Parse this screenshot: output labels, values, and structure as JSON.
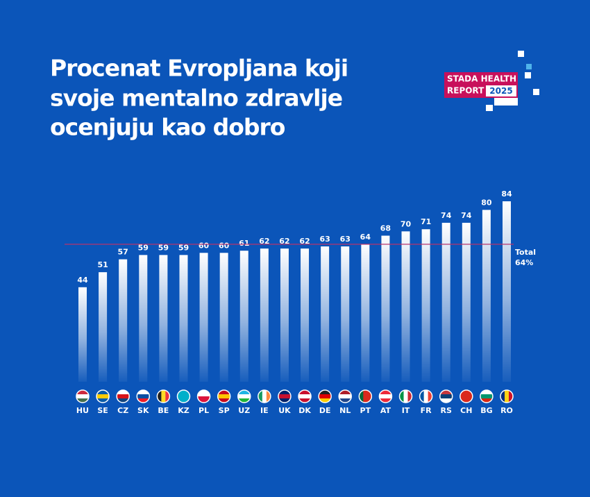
{
  "chart_data": {
    "type": "bar",
    "title": [
      "Procenat Evropljana koji",
      "svoje mentalno zdravlje",
      "ocenjuju kao dobro"
    ],
    "categories": [
      "HU",
      "SE",
      "CZ",
      "SK",
      "BE",
      "KZ",
      "PL",
      "SP",
      "UZ",
      "IE",
      "UK",
      "DK",
      "DE",
      "NL",
      "PT",
      "AT",
      "IT",
      "FR",
      "RS",
      "CH",
      "BG",
      "RO"
    ],
    "values": [
      44,
      51,
      57,
      59,
      59,
      59,
      60,
      60,
      61,
      62,
      62,
      62,
      63,
      63,
      64,
      68,
      70,
      71,
      74,
      74,
      80,
      84
    ],
    "color": "#ffffff",
    "reference": {
      "label": "Total",
      "value": 64,
      "value_label": "64%",
      "color": "#b8336a"
    }
  },
  "logo": {
    "line1": "STADA HEALTH",
    "line2": "REPORT",
    "year": "2025"
  }
}
